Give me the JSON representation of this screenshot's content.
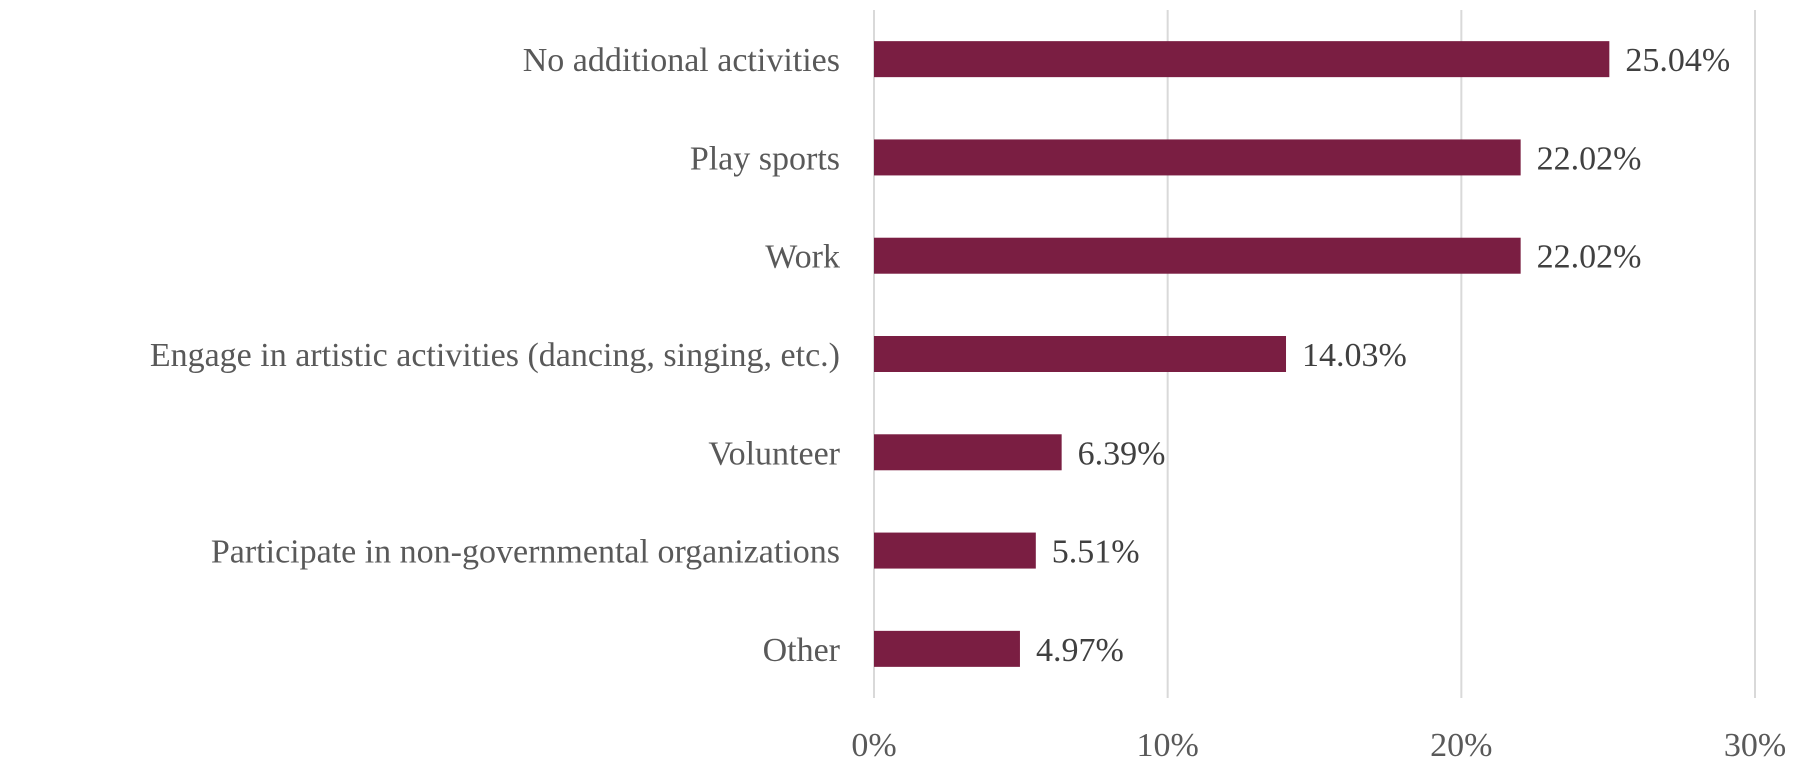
{
  "chart_data": {
    "type": "bar",
    "orientation": "horizontal",
    "title": "",
    "xlabel": "",
    "ylabel": "",
    "categories": [
      "No additional activities",
      "Play sports",
      "Work",
      "Engage in artistic activities (dancing, singing, etc.)",
      "Volunteer",
      "Participate in non-governmental organizations",
      "Other"
    ],
    "values": [
      25.04,
      22.02,
      22.02,
      14.03,
      6.39,
      5.51,
      4.97
    ],
    "data_labels": [
      "25.04%",
      "22.02%",
      "22.02%",
      "14.03%",
      "6.39%",
      "5.51%",
      "4.97%"
    ],
    "xlim": [
      0,
      30
    ],
    "xticks": [
      0,
      10,
      20,
      30
    ],
    "xtick_labels": [
      "0%",
      "10%",
      "20%",
      "30%"
    ],
    "grid": true,
    "legend": "none",
    "bar_color": "#7a1e42"
  }
}
